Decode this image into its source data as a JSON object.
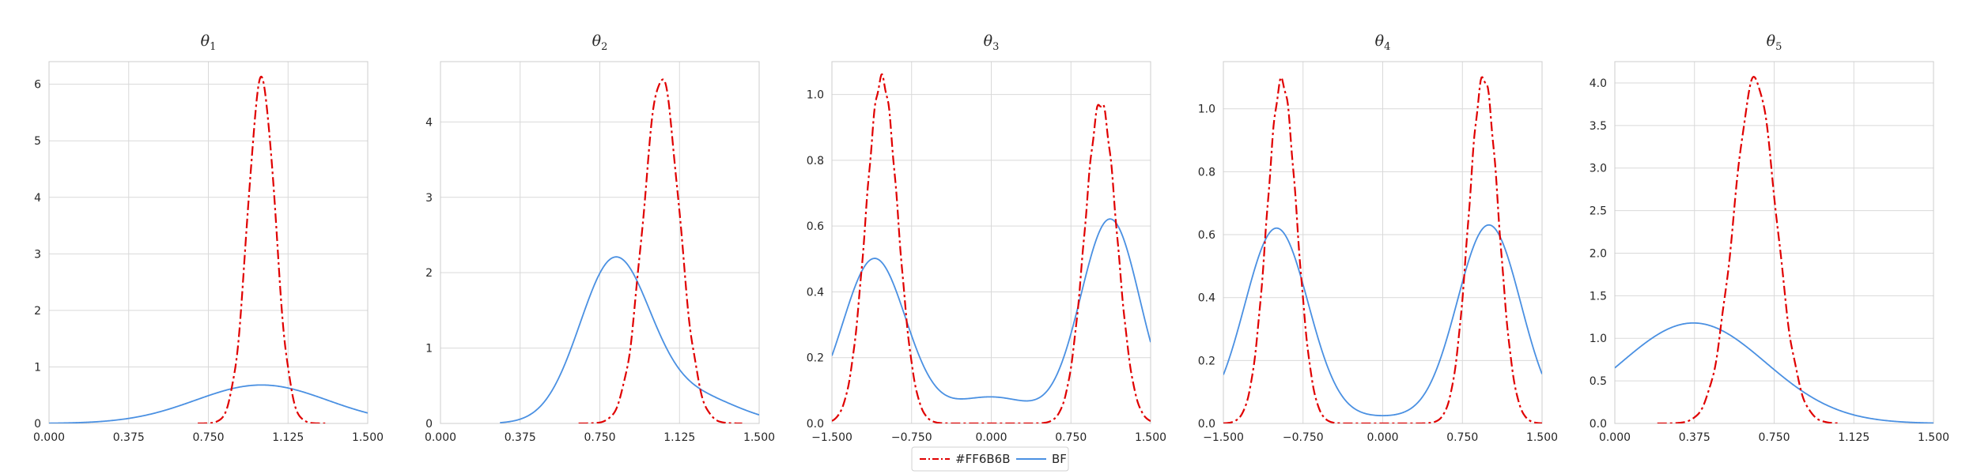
{
  "chart_data": [
    {
      "type": "line",
      "title": "θ",
      "title_sub": "1",
      "xlim": [
        0,
        1.5
      ],
      "ylim": [
        0,
        6.4
      ],
      "xticks": [
        0,
        0.375,
        0.75,
        1.125,
        1.5
      ],
      "yticks": [
        0,
        1,
        2,
        3,
        4,
        5,
        6
      ],
      "series": [
        {
          "name": "#FF6B6B",
          "kind": "gauss",
          "color": "#e00000",
          "dash": "12,4,3,4",
          "mu": 1.0,
          "sigma": 0.065,
          "amp": 6.08,
          "support": [
            0.7,
            1.3
          ],
          "noise": 0.06
        },
        {
          "name": "BF",
          "kind": "gauss",
          "color": "#4a90e2",
          "mu": 1.0,
          "sigma": 0.31,
          "amp": 0.68,
          "support": [
            0,
            1.5
          ]
        }
      ]
    },
    {
      "type": "line",
      "title": "θ",
      "title_sub": "2",
      "xlim": [
        0,
        1.5
      ],
      "ylim": [
        0,
        4.8
      ],
      "xticks": [
        0,
        0.375,
        0.75,
        1.125,
        1.5
      ],
      "yticks": [
        0,
        1,
        2,
        3,
        4
      ],
      "series": [
        {
          "name": "#FF6B6B",
          "kind": "gauss",
          "color": "#e00000",
          "dash": "12,4,3,4",
          "mu": 1.04,
          "sigma": 0.085,
          "amp": 4.58,
          "support": [
            0.65,
            1.42
          ],
          "noise": 0.05
        },
        {
          "name": "BF",
          "kind": "gauss",
          "color": "#4a90e2",
          "mu": 0.82,
          "sigma": 0.165,
          "amp": 2.15,
          "tailmu": 1.2,
          "tailsigma": 0.2,
          "tailamp": 0.35,
          "support": [
            0.28,
            1.5
          ]
        }
      ]
    },
    {
      "type": "line",
      "title": "θ",
      "title_sub": "3",
      "xlim": [
        -1.5,
        1.5
      ],
      "ylim": [
        0,
        1.1
      ],
      "xticks": [
        -1.5,
        -0.75,
        0,
        0.75,
        1.5
      ],
      "yticks": [
        0,
        0.2,
        0.4,
        0.6,
        0.8,
        1.0
      ],
      "series": [
        {
          "name": "#FF6B6B",
          "kind": "bimodal",
          "color": "#e00000",
          "dash": "12,4,3,4",
          "mu1": -1.03,
          "s1": 0.15,
          "a1": 1.05,
          "mu2": 1.03,
          "s2": 0.15,
          "a2": 0.975,
          "support": [
            -1.5,
            1.5
          ],
          "noise": 0.012
        },
        {
          "name": "BF",
          "kind": "bimodal",
          "color": "#4a90e2",
          "mu1": -1.1,
          "s1": 0.3,
          "a1": 0.5,
          "mu2": 1.12,
          "s2": 0.28,
          "a2": 0.62,
          "base": 0.08,
          "support": [
            -1.5,
            1.5
          ]
        }
      ]
    },
    {
      "type": "line",
      "title": "θ",
      "title_sub": "4",
      "xlim": [
        -1.5,
        1.5
      ],
      "ylim": [
        0,
        1.15
      ],
      "xticks": [
        -1.5,
        -0.75,
        0,
        0.75,
        1.5
      ],
      "yticks": [
        0,
        0.2,
        0.4,
        0.6,
        0.8,
        1.0
      ],
      "series": [
        {
          "name": "#FF6B6B",
          "kind": "bimodal",
          "color": "#e00000",
          "dash": "12,4,3,4",
          "mu1": -0.95,
          "s1": 0.14,
          "a1": 1.09,
          "mu2": 0.95,
          "s2": 0.14,
          "a2": 1.1,
          "support": [
            -1.5,
            1.5
          ],
          "noise": 0.012
        },
        {
          "name": "BF",
          "kind": "bimodal",
          "color": "#4a90e2",
          "mu1": -1.0,
          "s1": 0.3,
          "a1": 0.62,
          "mu2": 1.0,
          "s2": 0.3,
          "a2": 0.63,
          "base": 0.02,
          "support": [
            -1.5,
            1.5
          ]
        }
      ]
    },
    {
      "type": "line",
      "title": "θ",
      "title_sub": "5",
      "xlim": [
        0,
        1.5
      ],
      "ylim": [
        0,
        4.25
      ],
      "xticks": [
        0,
        0.375,
        0.75,
        1.125,
        1.5
      ],
      "yticks": [
        0,
        0.5,
        1.0,
        1.5,
        2.0,
        2.5,
        3.0,
        3.5,
        4.0
      ],
      "series": [
        {
          "name": "#FF6B6B",
          "kind": "gauss",
          "color": "#e00000",
          "dash": "12,4,3,4",
          "mu": 0.66,
          "sigma": 0.1,
          "amp": 4.05,
          "support": [
            0.2,
            1.06
          ],
          "noise": 0.04
        },
        {
          "name": "BF",
          "kind": "gauss",
          "color": "#4a90e2",
          "mu": 0.37,
          "sigma": 0.34,
          "amp": 1.18,
          "support": [
            0,
            1.5
          ]
        }
      ]
    }
  ],
  "legend": {
    "items": [
      {
        "label": "#FF6B6B",
        "color": "#e00000",
        "dash": "12,4,3,4"
      },
      {
        "label": "BF",
        "color": "#4a90e2",
        "dash": ""
      }
    ]
  }
}
